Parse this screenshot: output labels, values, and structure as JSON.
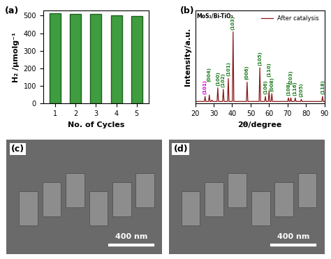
{
  "chart_data": [
    {
      "type": "bar",
      "annotations": [
        "(a)"
      ],
      "x_label": "No. of Cycles",
      "y_label": "H₂ /μmolg⁻¹",
      "categories": [
        "1",
        "2",
        "3",
        "4",
        "5"
      ],
      "values": [
        512,
        510,
        510,
        500,
        498
      ],
      "color": "#3f9c3f",
      "ylim": [
        0,
        530
      ],
      "yticks": [
        0,
        100,
        200,
        300,
        400,
        500
      ]
    },
    {
      "type": "line",
      "annotations": [
        "(b)",
        "MoS₂/Bi-TiO₂"
      ],
      "x_label": "2θ/degree",
      "y_label": "Intensity/a.u.",
      "x": [
        20,
        24.9,
        25.3,
        25.7,
        27.2,
        27.6,
        28.0,
        28.6,
        29.0,
        29.4,
        31.8,
        32.2,
        32.6,
        34.8,
        35.2,
        35.6,
        37.5,
        37.9,
        38.3,
        40.1,
        40.5,
        40.9,
        47.7,
        48.1,
        48.5,
        54.6,
        55.0,
        55.4,
        57.6,
        58.0,
        58.4,
        59.6,
        60.0,
        60.4,
        61.1,
        61.5,
        61.9,
        70.1,
        70.5,
        70.9,
        71.4,
        71.8,
        72.2,
        73.8,
        74.2,
        74.6,
        77.1,
        77.5,
        77.9,
        88.6,
        89.0,
        89.4,
        90
      ],
      "series": [
        {
          "name": "After catalysis",
          "color": "#8b1a1a",
          "values": [
            3,
            3,
            10,
            3,
            3,
            12,
            3,
            3,
            5,
            3,
            3,
            22,
            3,
            3,
            20,
            3,
            3,
            35,
            3,
            3,
            100,
            3,
            3,
            30,
            3,
            3,
            50,
            3,
            3,
            10,
            3,
            3,
            18,
            3,
            3,
            14,
            3,
            3,
            8,
            3,
            3,
            8,
            3,
            3,
            8,
            3,
            3,
            6,
            3,
            3,
            10,
            3,
            3
          ]
        }
      ],
      "peaks": [
        {
          "x": 25.3,
          "label": "(101)",
          "color": "#cc00cc"
        },
        {
          "x": 27.6,
          "label": "(004)",
          "color": "#1a7a1a"
        },
        {
          "x": 32.2,
          "label": "(100)",
          "color": "#1a7a1a"
        },
        {
          "x": 35.2,
          "label": "(102)",
          "color": "#1a7a1a"
        },
        {
          "x": 37.9,
          "label": "(101)",
          "color": "#1a7a1a"
        },
        {
          "x": 40.5,
          "label": "(103)",
          "color": "#1a7a1a"
        },
        {
          "x": 48.1,
          "label": "(006)",
          "color": "#1a7a1a"
        },
        {
          "x": 55.0,
          "label": "(105)",
          "color": "#1a7a1a"
        },
        {
          "x": 58.0,
          "label": "(106)",
          "color": "#1a7a1a"
        },
        {
          "x": 60.0,
          "label": "(110)",
          "color": "#1a7a1a"
        },
        {
          "x": 61.5,
          "label": "(008)",
          "color": "#1a7a1a"
        },
        {
          "x": 70.5,
          "label": "(108)",
          "color": "#1a7a1a"
        },
        {
          "x": 71.8,
          "label": "(203)",
          "color": "#1a7a1a"
        },
        {
          "x": 74.2,
          "label": "(116)",
          "color": "#1a7a1a"
        },
        {
          "x": 77.5,
          "label": "(205)",
          "color": "#1a7a1a"
        },
        {
          "x": 89.0,
          "label": "(118)",
          "color": "#1a7a1a"
        }
      ],
      "xlim": [
        20,
        90
      ],
      "xticks": [
        20,
        30,
        40,
        50,
        60,
        70,
        80,
        90
      ],
      "ylim": [
        0,
        130
      ],
      "tick_labels": "x",
      "legend": "upper right"
    }
  ],
  "images": [
    {
      "label": "(c)",
      "scale_bar": "400 nm"
    },
    {
      "label": "(d)",
      "scale_bar": "400 nm"
    }
  ]
}
